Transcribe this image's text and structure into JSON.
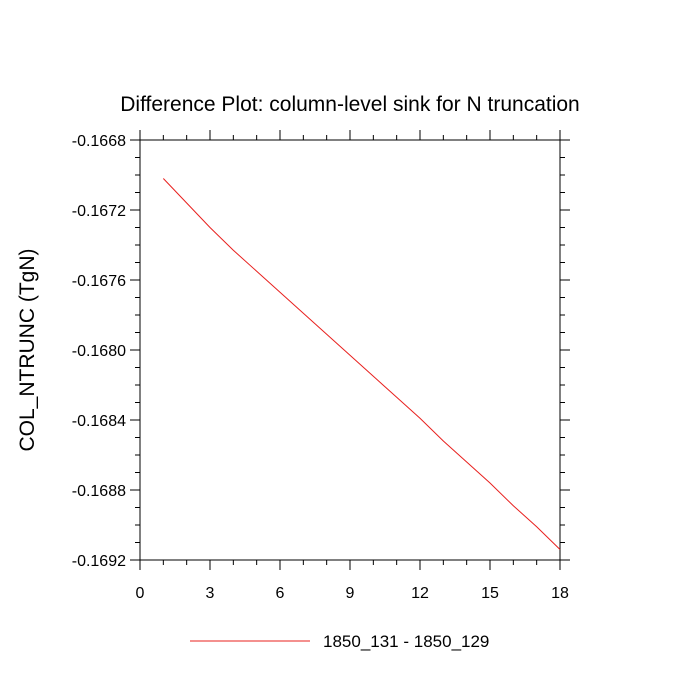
{
  "chart_data": {
    "type": "line",
    "title": "Difference Plot: column-level sink for N truncation",
    "xlabel": "",
    "ylabel": "COL_NTRUNC  (TgN)",
    "xlim": [
      0,
      18
    ],
    "ylim": [
      -0.1692,
      -0.1668
    ],
    "x_ticks": [
      0,
      3,
      6,
      9,
      12,
      15,
      18
    ],
    "x_tick_labels": [
      "0",
      "3",
      "6",
      "9",
      "12",
      "15",
      "18"
    ],
    "y_ticks": [
      -0.1668,
      -0.1672,
      -0.1676,
      -0.168,
      -0.1684,
      -0.1688,
      -0.1692
    ],
    "y_tick_labels": [
      "-0.1668",
      "-0.1672",
      "-0.1676",
      "-0.1680",
      "-0.1684",
      "-0.1688",
      "-0.1692"
    ],
    "grid": false,
    "legend_position": "bottom-center",
    "series": [
      {
        "name": "1850_131 - 1850_129",
        "color": "#e8201e",
        "x": [
          1,
          2,
          3,
          4,
          5,
          6,
          7,
          8,
          9,
          10,
          11,
          12,
          13,
          14,
          15,
          16,
          17,
          18
        ],
        "values": [
          -0.16702,
          -0.16716,
          -0.1673,
          -0.16743,
          -0.16755,
          -0.16767,
          -0.16779,
          -0.16791,
          -0.16803,
          -0.16815,
          -0.16827,
          -0.16839,
          -0.16852,
          -0.16864,
          -0.16876,
          -0.16889,
          -0.16901,
          -0.16914
        ]
      }
    ]
  }
}
